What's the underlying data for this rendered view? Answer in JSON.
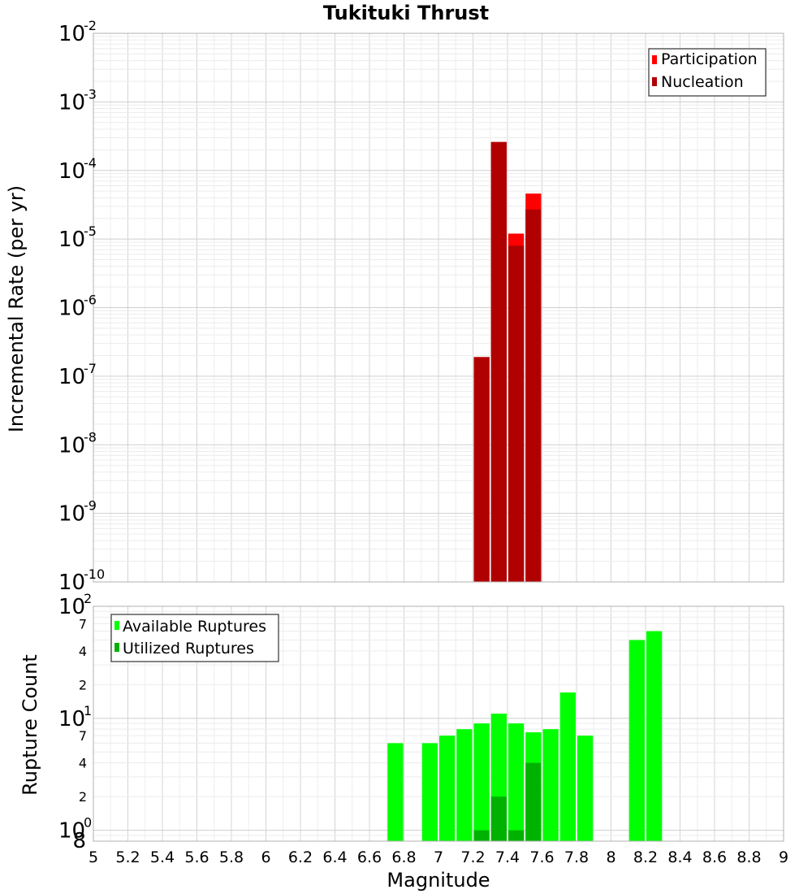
{
  "chart_data": [
    {
      "type": "bar",
      "title": "Tukituki Thrust",
      "xlabel": "",
      "ylabel": "Incremental Rate (per yr)",
      "xlim": [
        5,
        9
      ],
      "ylim": [
        1e-10,
        0.01
      ],
      "yscale": "log",
      "grid": true,
      "legend_position": "top-right",
      "bin_width": 0.1,
      "series": [
        {
          "name": "Participation",
          "color": "#ff0000",
          "x": [
            7.25,
            7.35,
            7.45,
            7.55
          ],
          "values": [
            1.9e-07,
            0.00026,
            1.2e-05,
            4.6e-05
          ]
        },
        {
          "name": "Nucleation",
          "color": "#b10000",
          "x": [
            7.25,
            7.35,
            7.45,
            7.55
          ],
          "values": [
            1.9e-07,
            0.00026,
            8e-06,
            2.7e-05
          ]
        }
      ]
    },
    {
      "type": "bar",
      "title": "",
      "xlabel": "Magnitude",
      "ylabel": "Rupture Count",
      "xlim": [
        5,
        9
      ],
      "ylim": [
        0.8,
        100
      ],
      "yscale": "log",
      "grid": true,
      "legend_position": "top-left",
      "bin_width": 0.1,
      "series": [
        {
          "name": "Available Ruptures",
          "color": "#00ff00",
          "x": [
            6.75,
            6.95,
            7.05,
            7.15,
            7.25,
            7.35,
            7.45,
            7.55,
            7.65,
            7.75,
            7.85,
            8.15,
            8.25
          ],
          "values": [
            6,
            6,
            7,
            8,
            9,
            11,
            9,
            7.5,
            8,
            17,
            7,
            50,
            60
          ]
        },
        {
          "name": "Utilized Ruptures",
          "color": "#00b200",
          "x": [
            7.25,
            7.35,
            7.45,
            7.55
          ],
          "values": [
            1,
            2,
            1,
            4
          ]
        }
      ]
    }
  ],
  "x_ticks": [
    "5",
    "5.2",
    "5.4",
    "5.6",
    "5.8",
    "6",
    "6.2",
    "6.4",
    "6.6",
    "6.8",
    "7",
    "7.2",
    "7.4",
    "7.6",
    "7.8",
    "8",
    "8.2",
    "8.4",
    "8.6",
    "8.8",
    "9"
  ],
  "top_y_ticks": [
    {
      "base": "10",
      "exp": "-2"
    },
    {
      "base": "10",
      "exp": "-3"
    },
    {
      "base": "10",
      "exp": "-4"
    },
    {
      "base": "10",
      "exp": "-5"
    },
    {
      "base": "10",
      "exp": "-6"
    },
    {
      "base": "10",
      "exp": "-7"
    },
    {
      "base": "10",
      "exp": "-8"
    },
    {
      "base": "10",
      "exp": "-9"
    },
    {
      "base": "10",
      "exp": "-10"
    }
  ],
  "bottom_y_ticks": {
    "decades": [
      {
        "base": "10",
        "exp": "2"
      },
      {
        "base": "10",
        "exp": "1"
      },
      {
        "base": "10",
        "exp": "0"
      }
    ],
    "minor": [
      "7",
      "4",
      "2",
      "7",
      "4",
      "2",
      "8"
    ]
  }
}
